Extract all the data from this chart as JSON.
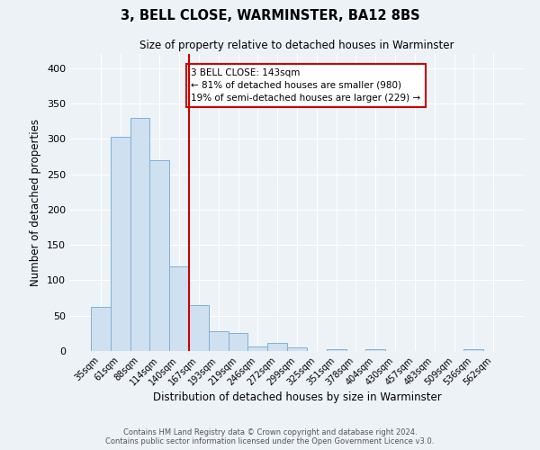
{
  "title": "3, BELL CLOSE, WARMINSTER, BA12 8BS",
  "subtitle": "Size of property relative to detached houses in Warminster",
  "xlabel": "Distribution of detached houses by size in Warminster",
  "ylabel": "Number of detached properties",
  "categories": [
    "35sqm",
    "61sqm",
    "88sqm",
    "114sqm",
    "140sqm",
    "167sqm",
    "193sqm",
    "219sqm",
    "246sqm",
    "272sqm",
    "299sqm",
    "325sqm",
    "351sqm",
    "378sqm",
    "404sqm",
    "430sqm",
    "457sqm",
    "483sqm",
    "509sqm",
    "536sqm",
    "562sqm"
  ],
  "values": [
    63,
    303,
    330,
    270,
    120,
    65,
    28,
    25,
    7,
    12,
    5,
    0,
    3,
    0,
    2,
    0,
    0,
    0,
    0,
    3,
    0
  ],
  "bar_color": "#cfe0f0",
  "bar_edge_color": "#7fb0d8",
  "vline_color": "#cc0000",
  "annotation_text": "3 BELL CLOSE: 143sqm\n← 81% of detached houses are smaller (980)\n19% of semi-detached houses are larger (229) →",
  "annotation_box_facecolor": "#ffffff",
  "annotation_box_edgecolor": "#cc0000",
  "ylim": [
    0,
    420
  ],
  "yticks": [
    0,
    50,
    100,
    150,
    200,
    250,
    300,
    350,
    400
  ],
  "footer1": "Contains HM Land Registry data © Crown copyright and database right 2024.",
  "footer2": "Contains public sector information licensed under the Open Government Licence v3.0.",
  "bg_color": "#edf2f7",
  "grid_color": "#ffffff"
}
